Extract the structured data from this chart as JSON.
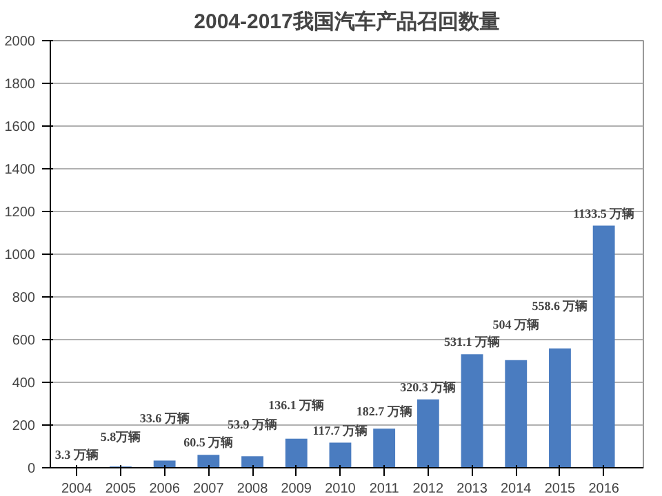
{
  "chart_data": {
    "type": "bar",
    "title": "2004-2017我国汽车产品召回数量",
    "categories": [
      "2004",
      "2005",
      "2006",
      "2007",
      "2008",
      "2009",
      "2010",
      "2011",
      "2012",
      "2013",
      "2014",
      "2015",
      "2016"
    ],
    "values": [
      3.3,
      5.8,
      33.6,
      60.5,
      53.9,
      136.1,
      117.7,
      182.7,
      320.3,
      531.1,
      504,
      558.6,
      1133.5
    ],
    "value_labels": [
      "3.3 万辆",
      "5.8万辆",
      "33.6 万辆",
      "60.5 万辆",
      "53.9 万辆",
      "136.1 万辆",
      "117.7 万辆",
      "182.7 万辆",
      "320.3 万辆",
      "531.1 万辆",
      "504 万辆",
      "558.6 万辆",
      "1133.5 万辆"
    ],
    "color": "#4a7cc0",
    "ylim": [
      0,
      2000
    ],
    "yticks": [
      0,
      200,
      400,
      600,
      800,
      1000,
      1200,
      1400,
      1600,
      1800,
      2000
    ],
    "grid": "y"
  }
}
